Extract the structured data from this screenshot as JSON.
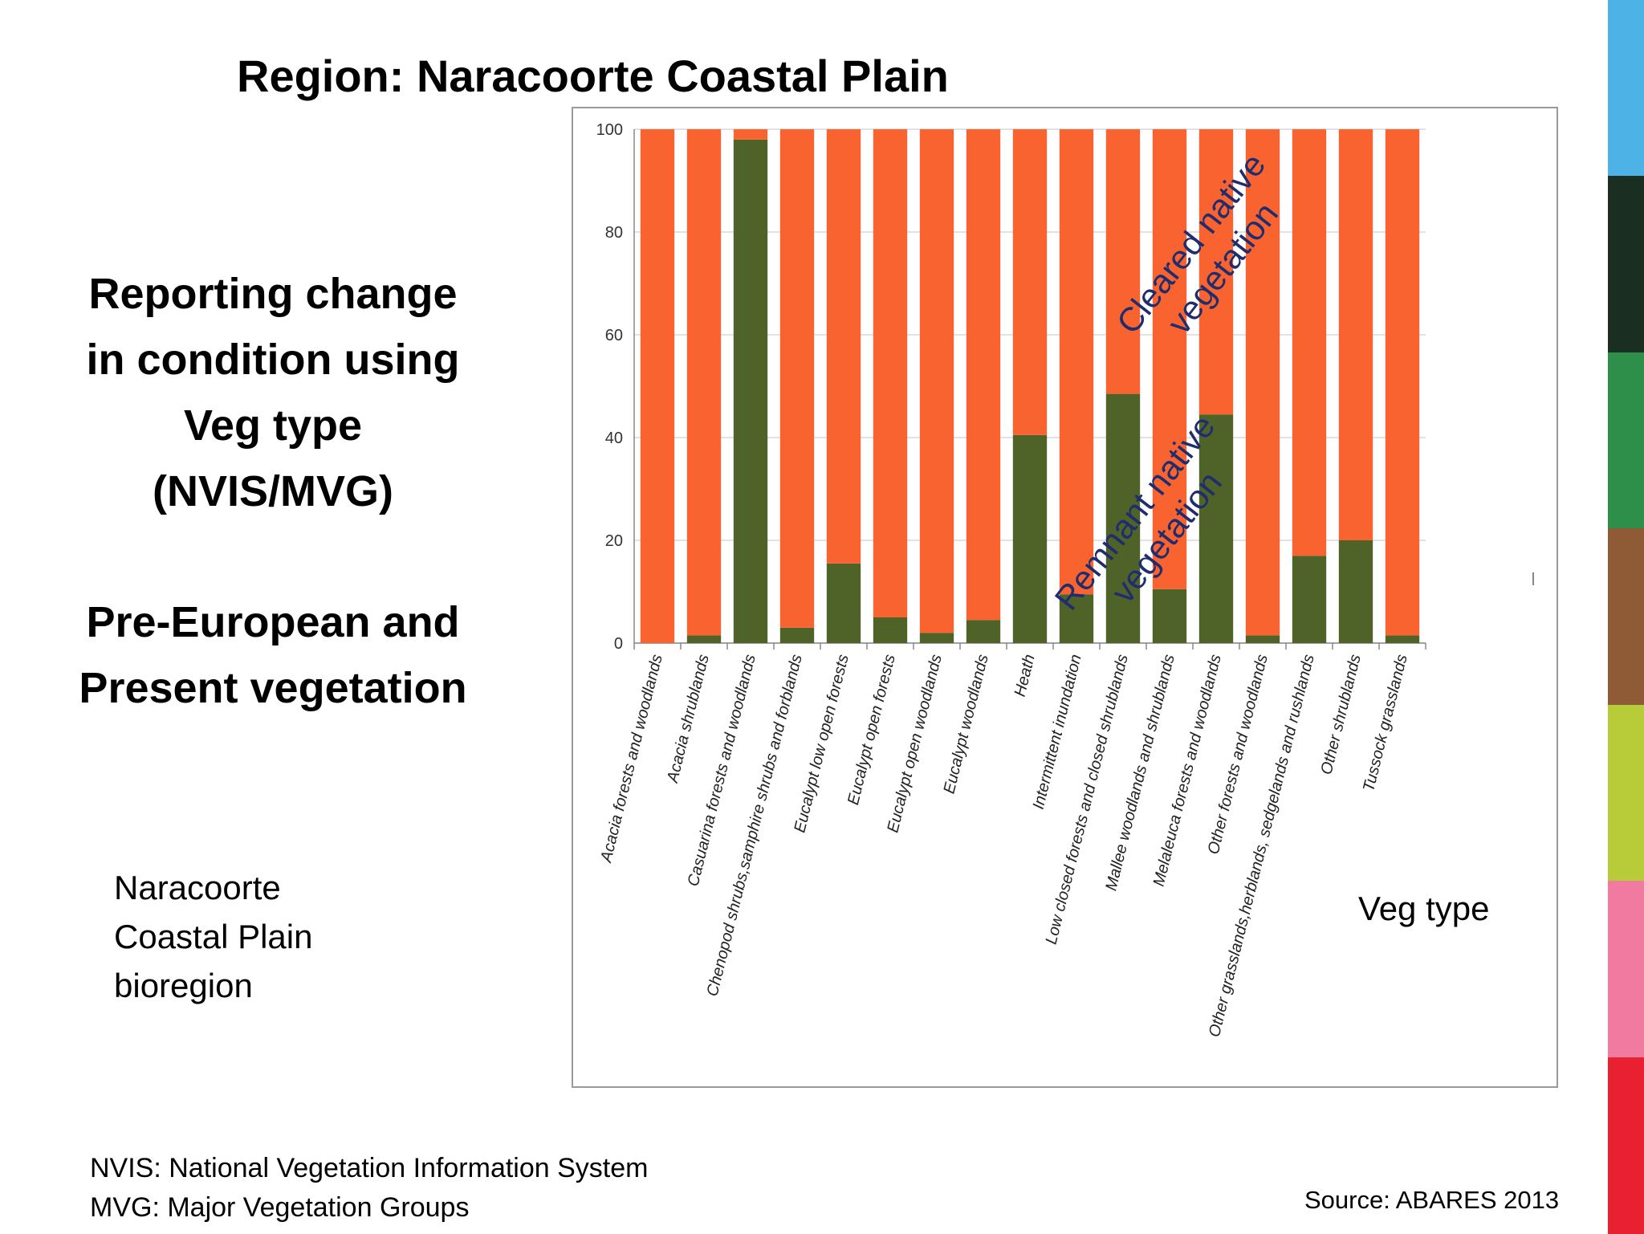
{
  "slide": {
    "title": "Region: Naracoorte Coastal Plain",
    "description_lines": [
      "Reporting change",
      "in condition using",
      "Veg type",
      "(NVIS/MVG)"
    ],
    "subdescription_lines": [
      "Pre-European  and",
      "Present vegetation"
    ],
    "region_label_lines": [
      "Naracoorte",
      "Coastal Plain",
      "bioregion"
    ],
    "footnotes": [
      "NVIS: National Vegetation Information System",
      "MVG: Major Vegetation Groups"
    ],
    "source": "Source: ABARES 2013",
    "brand_stripe_colors": [
      "#4db3e6",
      "#1b2e22",
      "#2e8f4a",
      "#8f5a36",
      "#b8cc3a",
      "#f07aa0",
      "#e8202f"
    ]
  },
  "chart_data": {
    "type": "bar",
    "stacked": true,
    "title": "",
    "xlabel": "Veg type",
    "ylabel": "",
    "ylim": [
      0,
      100
    ],
    "yticks": [
      0,
      20,
      40,
      60,
      80,
      100
    ],
    "grid": true,
    "categories": [
      "Acacia forests and woodlands",
      "Acacia shrublands",
      "Casuarina forests and woodlands",
      "Chenopod shrubs,samphire shrubs and forblands",
      "Eucalypt low open forests",
      "Eucalypt open forests",
      "Eucalypt open woodlands",
      "Eucalypt woodlands",
      "Heath",
      "Intermittent inundation",
      "Low closed forests and closed shrublands",
      "Mallee woodlands and shrublands",
      "Melaleuca forests and woodlands",
      "Other forests and woodlands",
      "Other grasslands,herblands, sedgelands and rushlands",
      "Other shrublands",
      "Tussock grasslands"
    ],
    "series": [
      {
        "name": "Remnant native vegetation",
        "color": "#4f6228",
        "values": [
          0,
          1.5,
          98,
          3,
          15.5,
          5,
          2,
          4.5,
          40.5,
          9.5,
          48.5,
          10.5,
          44.5,
          1.5,
          17,
          20,
          1.5
        ]
      },
      {
        "name": "Cleared native vegetation",
        "color": "#f96330",
        "values": [
          100,
          98.5,
          2,
          97,
          84.5,
          95,
          98,
          95.5,
          59.5,
          90.5,
          51.5,
          89.5,
          55.5,
          98.5,
          83,
          80,
          98.5
        ]
      }
    ],
    "annotations": [
      {
        "lines": [
          "Cleared native",
          "vegetation"
        ],
        "series": "Cleared native vegetation",
        "color": "#1f2d6e"
      },
      {
        "lines": [
          "Remnant native",
          "vegetation"
        ],
        "series": "Remnant native vegetation",
        "color": "#1f2d6e"
      }
    ]
  }
}
